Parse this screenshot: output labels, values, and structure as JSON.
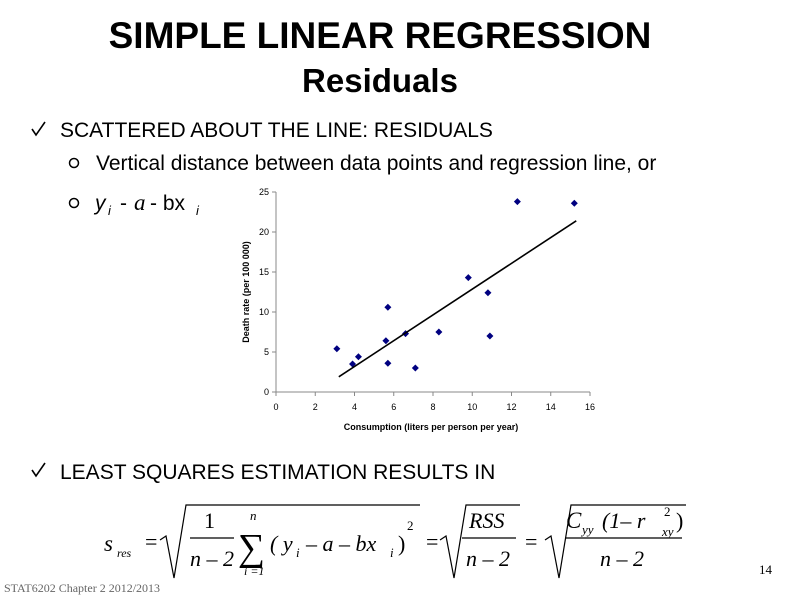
{
  "title": "SIMPLE LINEAR REGRESSION",
  "subtitle": "Residuals",
  "bullets": [
    "SCATTERED ABOUT THE LINE: RESIDUALS",
    "LEAST SQUARES ESTIMATION RESULTS IN"
  ],
  "sub_bullet_1": "Vertical distance between data points and regression line, or",
  "sub_bullet_2": [
    "y",
    "i",
    "-",
    "a",
    "- bx",
    "i"
  ],
  "formula": [
    "s",
    "res",
    "=",
    "1",
    "n – 2",
    "n",
    "∑",
    "i =1",
    "( y",
    "i",
    "– a – bx",
    "i",
    ")",
    "2",
    "=",
    "RSS",
    "n – 2",
    "=",
    "C",
    "yy",
    "(1– r",
    "2",
    "xy",
    ")",
    "n – 2"
  ],
  "footer": "STAT6202 Chapter 2 2012/2013",
  "page_number": "14",
  "chart_data": {
    "type": "scatter",
    "x": [
      3.1,
      3.9,
      4.2,
      5.6,
      5.7,
      5.7,
      6.6,
      7.1,
      8.3,
      9.8,
      10.8,
      10.9,
      12.3,
      15.2
    ],
    "y": [
      5.4,
      3.5,
      4.4,
      6.4,
      10.6,
      3.6,
      7.3,
      3.0,
      7.5,
      14.3,
      12.4,
      7.0,
      23.8,
      23.6
    ],
    "color": "#000080",
    "trendline": {
      "x": [
        3.2,
        15.3
      ],
      "y": [
        1.9,
        21.4
      ],
      "color": "#000000"
    },
    "xlim": [
      0,
      16
    ],
    "ylim": [
      0,
      25
    ],
    "xticks": [
      0,
      2,
      4,
      6,
      8,
      10,
      12,
      14,
      16
    ],
    "yticks": [
      0,
      5,
      10,
      15,
      20,
      25
    ],
    "xlabel": "Consumption (liters per person per year)",
    "ylabel": "Death rate (per 100 000)"
  }
}
